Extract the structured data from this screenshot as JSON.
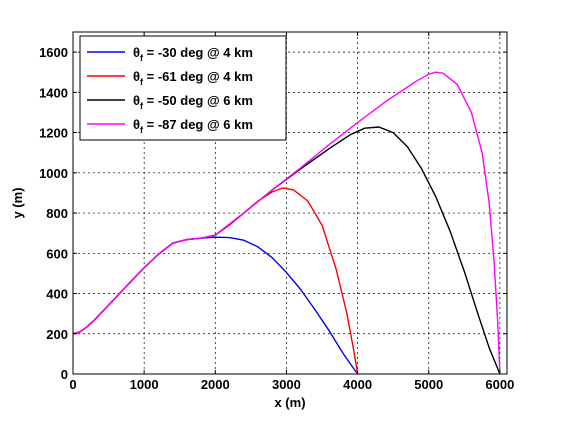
{
  "chart_data": {
    "type": "line",
    "xlabel": "x (m)",
    "ylabel": "y (m)",
    "xlim": [
      0,
      6100
    ],
    "ylim": [
      0,
      1700
    ],
    "x_ticks": [
      0,
      1000,
      2000,
      3000,
      4000,
      5000,
      6000
    ],
    "y_ticks": [
      0,
      200,
      400,
      600,
      800,
      1000,
      1200,
      1400,
      1600
    ],
    "grid": true,
    "grid_style": "dashed",
    "legend_position": "top-left",
    "series": [
      {
        "name": "θ_f = -30 deg @ 4 km",
        "legend_symbol": "θ",
        "legend_sub": "f",
        "legend_rest": " = -30 deg @ 4 km",
        "color": "#0000ff",
        "x": [
          0,
          100,
          200,
          300,
          400,
          600,
          800,
          1000,
          1200,
          1400,
          1600,
          1800,
          2000,
          2200,
          2400,
          2600,
          2800,
          3000,
          3200,
          3400,
          3600,
          3800,
          3950,
          4000
        ],
        "y": [
          200,
          210,
          235,
          268,
          305,
          380,
          455,
          528,
          595,
          650,
          668,
          675,
          680,
          678,
          665,
          632,
          578,
          505,
          420,
          320,
          215,
          100,
          25,
          0
        ]
      },
      {
        "name": "θ_f = -61 deg @ 4 km",
        "legend_symbol": "θ",
        "legend_sub": "f",
        "legend_rest": " = -61 deg @ 4 km",
        "color": "#ff0000",
        "x": [
          0,
          100,
          200,
          300,
          400,
          600,
          800,
          1000,
          1200,
          1400,
          1600,
          1800,
          2000,
          2200,
          2400,
          2600,
          2800,
          2950,
          3100,
          3300,
          3500,
          3700,
          3850,
          3950,
          4000
        ],
        "y": [
          200,
          210,
          235,
          268,
          305,
          380,
          455,
          528,
          595,
          650,
          668,
          675,
          690,
          740,
          800,
          860,
          905,
          925,
          915,
          860,
          740,
          520,
          300,
          110,
          0
        ]
      },
      {
        "name": "θ_f = -50 deg @ 6 km",
        "legend_symbol": "θ",
        "legend_sub": "f",
        "legend_rest": " = -50 deg @ 6 km",
        "color": "#000000",
        "x": [
          0,
          100,
          200,
          300,
          400,
          600,
          800,
          1000,
          1200,
          1400,
          1600,
          1800,
          2000,
          2400,
          2800,
          3200,
          3600,
          3900,
          4100,
          4300,
          4500,
          4700,
          4900,
          5100,
          5300,
          5500,
          5700,
          5850,
          6000
        ],
        "y": [
          200,
          210,
          235,
          268,
          305,
          380,
          455,
          528,
          595,
          650,
          668,
          675,
          690,
          800,
          915,
          1020,
          1120,
          1190,
          1222,
          1228,
          1200,
          1130,
          1020,
          880,
          710,
          510,
          290,
          130,
          0
        ]
      },
      {
        "name": "θ_f = -87 deg @ 6 km",
        "legend_symbol": "θ",
        "legend_sub": "f",
        "legend_rest": " = -87 deg @ 6 km",
        "color": "#ff00ff",
        "x": [
          0,
          100,
          200,
          300,
          400,
          600,
          800,
          1000,
          1200,
          1400,
          1600,
          1800,
          2000,
          2400,
          2800,
          3200,
          3600,
          4000,
          4400,
          4800,
          5000,
          5100,
          5200,
          5400,
          5600,
          5750,
          5850,
          5920,
          5970,
          6000
        ],
        "y": [
          200,
          210,
          235,
          268,
          305,
          380,
          455,
          528,
          595,
          650,
          668,
          675,
          690,
          800,
          915,
          1025,
          1140,
          1250,
          1355,
          1450,
          1490,
          1500,
          1495,
          1440,
          1300,
          1100,
          850,
          550,
          250,
          0
        ]
      }
    ]
  }
}
